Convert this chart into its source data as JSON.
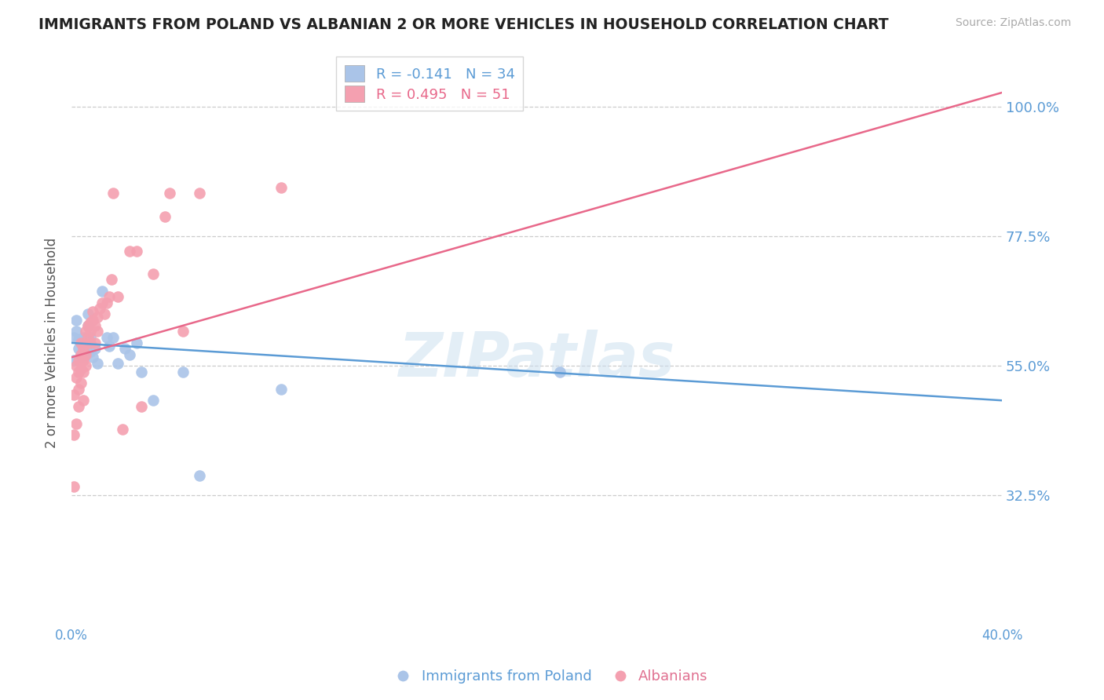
{
  "title": "IMMIGRANTS FROM POLAND VS ALBANIAN 2 OR MORE VEHICLES IN HOUSEHOLD CORRELATION CHART",
  "source": "Source: ZipAtlas.com",
  "ylabel": "2 or more Vehicles in Household",
  "xlim": [
    0.0,
    0.4
  ],
  "ylim": [
    0.1,
    1.08
  ],
  "yticks": [
    0.325,
    0.55,
    0.775,
    1.0
  ],
  "ytick_labels": [
    "32.5%",
    "55.0%",
    "77.5%",
    "100.0%"
  ],
  "xtick_labels": [
    "0.0%",
    "",
    "",
    "",
    "40.0%"
  ],
  "watermark": "ZIPatlas",
  "poland_color": "#aac4e8",
  "albanian_color": "#f4a0b0",
  "poland_line_color": "#5b9bd5",
  "albanian_line_color": "#e8688a",
  "poland_R": -0.141,
  "poland_N": 34,
  "albanian_R": 0.495,
  "albanian_N": 51,
  "poland_x": [
    0.001,
    0.001,
    0.002,
    0.002,
    0.003,
    0.003,
    0.004,
    0.004,
    0.005,
    0.005,
    0.005,
    0.006,
    0.006,
    0.007,
    0.007,
    0.008,
    0.008,
    0.009,
    0.01,
    0.011,
    0.013,
    0.015,
    0.016,
    0.018,
    0.02,
    0.023,
    0.025,
    0.028,
    0.03,
    0.035,
    0.048,
    0.055,
    0.09,
    0.21
  ],
  "poland_y": [
    0.56,
    0.6,
    0.61,
    0.63,
    0.58,
    0.595,
    0.57,
    0.59,
    0.565,
    0.58,
    0.6,
    0.57,
    0.595,
    0.62,
    0.64,
    0.575,
    0.6,
    0.565,
    0.58,
    0.555,
    0.68,
    0.6,
    0.585,
    0.6,
    0.555,
    0.58,
    0.57,
    0.59,
    0.54,
    0.49,
    0.54,
    0.36,
    0.51,
    0.54
  ],
  "albanian_x": [
    0.001,
    0.001,
    0.001,
    0.002,
    0.002,
    0.002,
    0.003,
    0.003,
    0.003,
    0.003,
    0.004,
    0.004,
    0.004,
    0.004,
    0.005,
    0.005,
    0.005,
    0.005,
    0.006,
    0.006,
    0.006,
    0.006,
    0.007,
    0.007,
    0.008,
    0.008,
    0.008,
    0.009,
    0.009,
    0.01,
    0.01,
    0.011,
    0.011,
    0.012,
    0.013,
    0.014,
    0.015,
    0.016,
    0.017,
    0.018,
    0.02,
    0.022,
    0.025,
    0.028,
    0.03,
    0.035,
    0.04,
    0.042,
    0.048,
    0.055,
    0.09
  ],
  "albanian_y": [
    0.34,
    0.43,
    0.5,
    0.45,
    0.53,
    0.55,
    0.48,
    0.51,
    0.54,
    0.56,
    0.52,
    0.545,
    0.57,
    0.59,
    0.49,
    0.54,
    0.56,
    0.58,
    0.55,
    0.57,
    0.59,
    0.61,
    0.6,
    0.62,
    0.59,
    0.61,
    0.625,
    0.63,
    0.645,
    0.59,
    0.62,
    0.61,
    0.635,
    0.65,
    0.66,
    0.64,
    0.66,
    0.67,
    0.7,
    0.85,
    0.67,
    0.44,
    0.75,
    0.75,
    0.48,
    0.71,
    0.81,
    0.85,
    0.61,
    0.85,
    0.86
  ]
}
